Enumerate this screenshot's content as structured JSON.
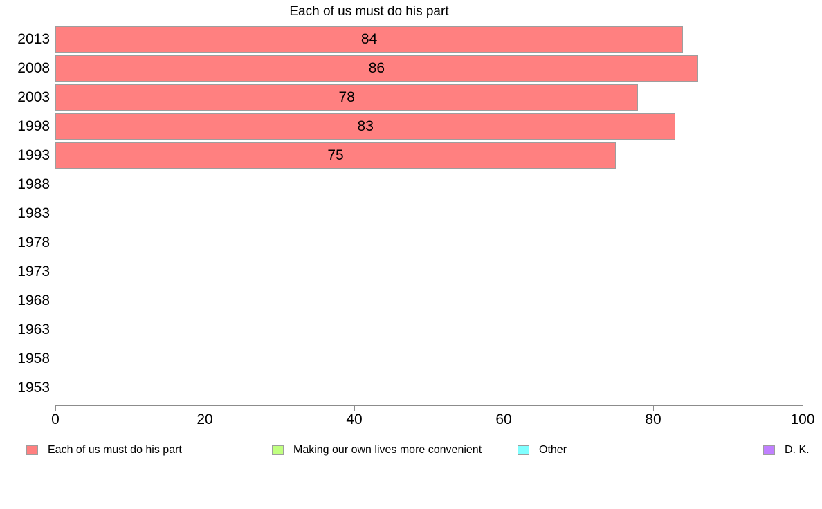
{
  "chart_data": {
    "type": "bar",
    "orientation": "horizontal",
    "title": "Each of us must do his part",
    "categories": [
      "2013",
      "2008",
      "2003",
      "1998",
      "1993",
      "1988",
      "1983",
      "1978",
      "1973",
      "1968",
      "1963",
      "1958",
      "1953"
    ],
    "series": [
      {
        "name": "Each of us must do his part",
        "color": "#FF8080",
        "values": [
          84,
          86,
          78,
          83,
          75,
          null,
          null,
          null,
          null,
          null,
          null,
          null,
          null
        ]
      },
      {
        "name": "Making our own lives more convenient",
        "color": "#C0FF80",
        "values": []
      },
      {
        "name": "Other",
        "color": "#80FFFF",
        "values": []
      },
      {
        "name": "D. K.",
        "color": "#C080FF",
        "values": []
      }
    ],
    "xlabel": "",
    "ylabel": "",
    "xlim": [
      0,
      100
    ],
    "xticks": [
      0,
      20,
      40,
      60,
      80,
      100
    ],
    "grid": "off",
    "legend_position": "bottom",
    "bar_border_color": "#9e9e9e",
    "axis_color": "#8c8c8c"
  }
}
